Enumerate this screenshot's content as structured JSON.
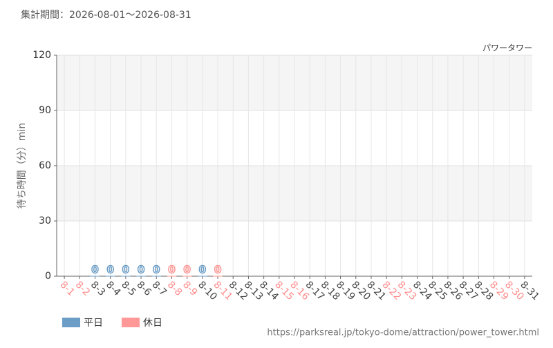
{
  "chart_data": {
    "type": "bar",
    "title": "集計期間：2026-08-01〜2026-08-31",
    "subtitle": "パワータワー",
    "y_label": "待ち時間（分）min",
    "footer": "https://parksreal.jp/tokyo-dome/attraction/power_tower.html",
    "categories": [
      "8-1",
      "8-2",
      "8-3",
      "8-4",
      "8-5",
      "8-6",
      "8-7",
      "8-8",
      "8-9",
      "8-10",
      "8-11",
      "8-12",
      "8-13",
      "8-14",
      "8-15",
      "8-16",
      "8-17",
      "8-18",
      "8-19",
      "8-20",
      "8-21",
      "8-22",
      "8-23",
      "8-24",
      "8-25",
      "8-26",
      "8-27",
      "8-28",
      "8-29",
      "8-30",
      "8-31"
    ],
    "category_colors": [
      "#ff8a8a",
      "#ff8a8a",
      "#444",
      "#444",
      "#444",
      "#444",
      "#444",
      "#ff8a8a",
      "#ff8a8a",
      "#444",
      "#ff8a8a",
      "#444",
      "#444",
      "#444",
      "#ff8a8a",
      "#ff8a8a",
      "#444",
      "#444",
      "#444",
      "#444",
      "#444",
      "#ff8a8a",
      "#ff8a8a",
      "#444",
      "#444",
      "#444",
      "#444",
      "#444",
      "#ff8a8a",
      "#ff8a8a",
      "#444"
    ],
    "series": [
      {
        "name": "平日",
        "color": "#6b9dc6",
        "values": [
          null,
          null,
          0,
          0,
          0,
          0,
          0,
          null,
          null,
          0,
          null,
          null,
          null,
          null,
          null,
          null,
          null,
          null,
          null,
          null,
          null,
          null,
          null,
          null,
          null,
          null,
          null,
          null,
          null,
          null,
          null
        ]
      },
      {
        "name": "休日",
        "color": "#ff9896",
        "values": [
          null,
          null,
          null,
          null,
          null,
          null,
          null,
          0,
          0,
          null,
          0,
          null,
          null,
          null,
          null,
          null,
          null,
          null,
          null,
          null,
          null,
          null,
          null,
          null,
          null,
          null,
          null,
          null,
          null,
          null,
          null
        ]
      }
    ],
    "ylim": [
      0,
      120
    ],
    "yticks": [
      0,
      30,
      60,
      90,
      120
    ],
    "grid": true
  }
}
